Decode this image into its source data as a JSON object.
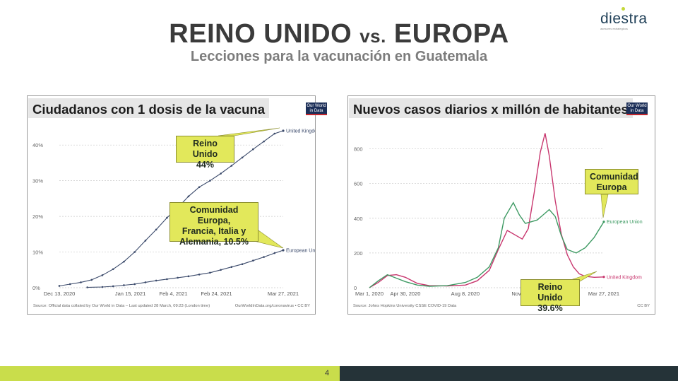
{
  "logo": {
    "text": "diestra",
    "tagline": "asesores estrategicos"
  },
  "header": {
    "title_part1": "REINO UNIDO ",
    "title_vs": "vs.",
    "title_part2": " EUROPA",
    "subtitle": "Lecciones para la vacunación en Guatemala"
  },
  "owid_badge": "Our World in Data",
  "footer": {
    "page_number": "4"
  },
  "colors": {
    "uk": "#3b4a6b",
    "eu": "#3b4a6b",
    "uk_cases": "#c8366e",
    "eu_cases": "#3e9a63",
    "callout": "#e2e85b",
    "footer_green": "#c9dd4b",
    "footer_dark": "#253338"
  },
  "chart_data": [
    {
      "type": "line",
      "title": "Ciudadanos con 1 dosis de la vacuna",
      "x_tick_labels": [
        "Dec 13, 2020",
        "Jan 15, 2021",
        "Feb 4, 2021",
        "Feb 24, 2021",
        "Mar 27, 2021"
      ],
      "y_tick_labels": [
        "0%",
        "10%",
        "20%",
        "30%",
        "40%"
      ],
      "ylim": [
        0,
        44
      ],
      "x_days": [
        0,
        33,
        53,
        73,
        104
      ],
      "series": [
        {
          "name": "United Kingdom",
          "x": [
            0,
            5,
            10,
            15,
            20,
            25,
            30,
            35,
            40,
            45,
            50,
            55,
            60,
            65,
            70,
            75,
            80,
            85,
            90,
            95,
            100,
            104
          ],
          "y": [
            0.5,
            1.0,
            1.5,
            2.2,
            3.5,
            5.2,
            7.3,
            10.0,
            13.2,
            16.3,
            19.6,
            22.4,
            25.6,
            28.2,
            30.0,
            32.0,
            34.2,
            36.5,
            38.8,
            41.0,
            43.2,
            44.0
          ]
        },
        {
          "name": "European Union",
          "x": [
            13,
            20,
            25,
            30,
            35,
            40,
            45,
            50,
            55,
            60,
            65,
            70,
            75,
            80,
            85,
            90,
            95,
            100,
            104
          ],
          "y": [
            0.1,
            0.2,
            0.4,
            0.7,
            1.0,
            1.5,
            2.0,
            2.4,
            2.8,
            3.2,
            3.7,
            4.2,
            5.0,
            5.8,
            6.6,
            7.6,
            8.6,
            9.7,
            10.5
          ]
        }
      ],
      "callouts": [
        {
          "text": "Reino Unido\n44%"
        },
        {
          "text": "Comunidad Europa,\nFrancia, Italia y\nAlemania, 10.5%"
        }
      ],
      "source": "Source: Official data collated by Our World in Data – Last updated 28 March, 09:23 (London time)",
      "credit": "OurWorldInData.org/coronavirus • CC BY"
    },
    {
      "type": "line",
      "title": "Nuevos casos diarios x millón de habitantes",
      "x_tick_labels": [
        "Mar 1, 2020",
        "Apr 30, 2020",
        "Aug 8, 2020",
        "Nov",
        "Mar 27, 2021"
      ],
      "y_tick_labels": [
        "0",
        "200",
        "400",
        "600",
        "800"
      ],
      "ylim": [
        0,
        900
      ],
      "x_days": [
        0,
        60,
        160,
        245,
        391
      ],
      "series": [
        {
          "name": "United Kingdom",
          "x": [
            0,
            15,
            30,
            45,
            60,
            80,
            100,
            130,
            160,
            180,
            200,
            215,
            230,
            245,
            255,
            265,
            275,
            285,
            293,
            300,
            310,
            320,
            330,
            340,
            350,
            360,
            375,
            391
          ],
          "y": [
            0,
            30,
            70,
            75,
            60,
            25,
            12,
            10,
            15,
            40,
            100,
            220,
            330,
            300,
            280,
            340,
            550,
            780,
            890,
            760,
            500,
            310,
            190,
            120,
            80,
            65,
            60,
            62
          ]
        },
        {
          "name": "European Union",
          "x": [
            0,
            15,
            30,
            45,
            60,
            80,
            100,
            130,
            160,
            180,
            200,
            215,
            225,
            240,
            250,
            260,
            270,
            280,
            290,
            300,
            310,
            320,
            330,
            345,
            360,
            375,
            391
          ],
          "y": [
            0,
            40,
            75,
            55,
            35,
            15,
            8,
            12,
            30,
            60,
            120,
            230,
            400,
            490,
            420,
            370,
            380,
            390,
            420,
            450,
            410,
            300,
            220,
            200,
            230,
            290,
            380
          ]
        }
      ],
      "callouts": [
        {
          "text": "Comunidad\nEuropa"
        },
        {
          "text": "Reino Unido\n39.6%"
        }
      ],
      "source": "Source: Johns Hopkins University CSSE COVID-19 Data",
      "credit": "CC BY"
    }
  ]
}
